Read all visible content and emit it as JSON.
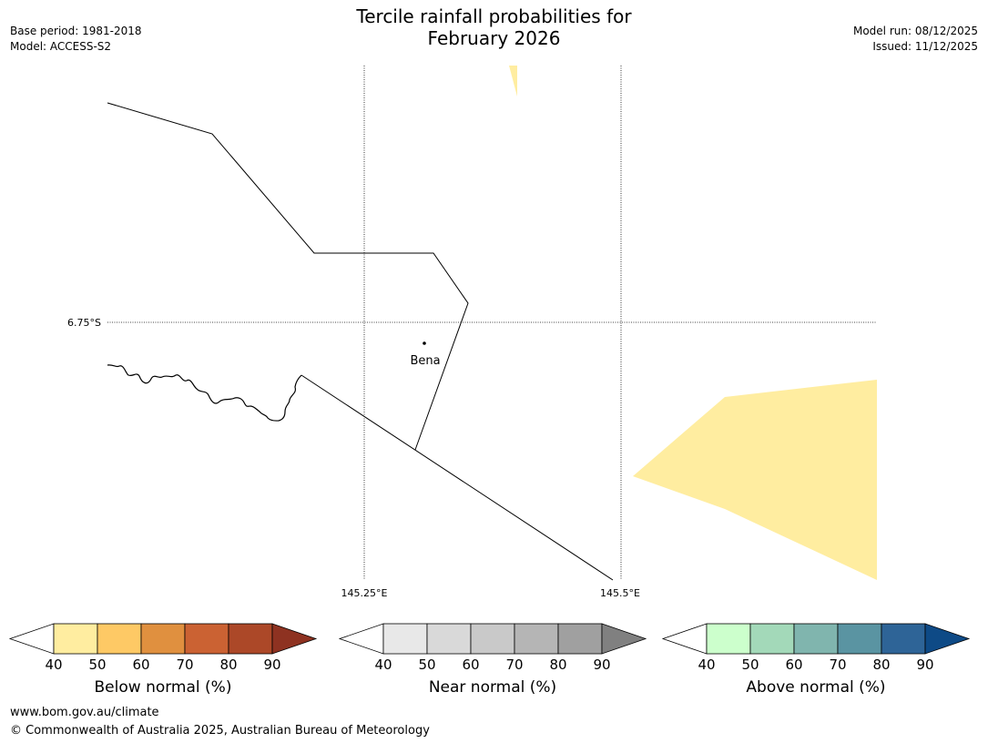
{
  "header": {
    "title_line1": "Tercile rainfall probabilities for",
    "title_line2": "February 2026",
    "base_period": "Base period: 1981-2018",
    "model": "Model: ACCESS-S2",
    "model_run": "Model run: 08/12/2025",
    "issued": "Issued: 11/12/2025"
  },
  "map": {
    "lat_label": "6.75°S",
    "lon_labels": [
      "145.25°E",
      "145.5°E"
    ],
    "place": "Bena",
    "fill_color": "#ffeda0"
  },
  "legend": {
    "ticks": [
      "40",
      "50",
      "60",
      "70",
      "80",
      "90"
    ],
    "below": {
      "title": "Below normal (%)",
      "colors": [
        "#ffeda0",
        "#fec965",
        "#e0903f",
        "#cb6233",
        "#ac4828",
        "#8e3221"
      ]
    },
    "near": {
      "title": "Near normal (%)",
      "colors": [
        "#e8e8e8",
        "#d9d9d9",
        "#c9c9c9",
        "#b5b5b5",
        "#a0a0a0",
        "#808080"
      ]
    },
    "above": {
      "title": "Above normal (%)",
      "colors": [
        "#ccffcc",
        "#a3d9b9",
        "#80b5ae",
        "#5a94a2",
        "#2e6497",
        "#0e4a86"
      ]
    }
  },
  "footer": {
    "url": "www.bom.gov.au/climate",
    "copyright": "© Commonwealth of Australia 2025, Australian Bureau of Meteorology"
  }
}
